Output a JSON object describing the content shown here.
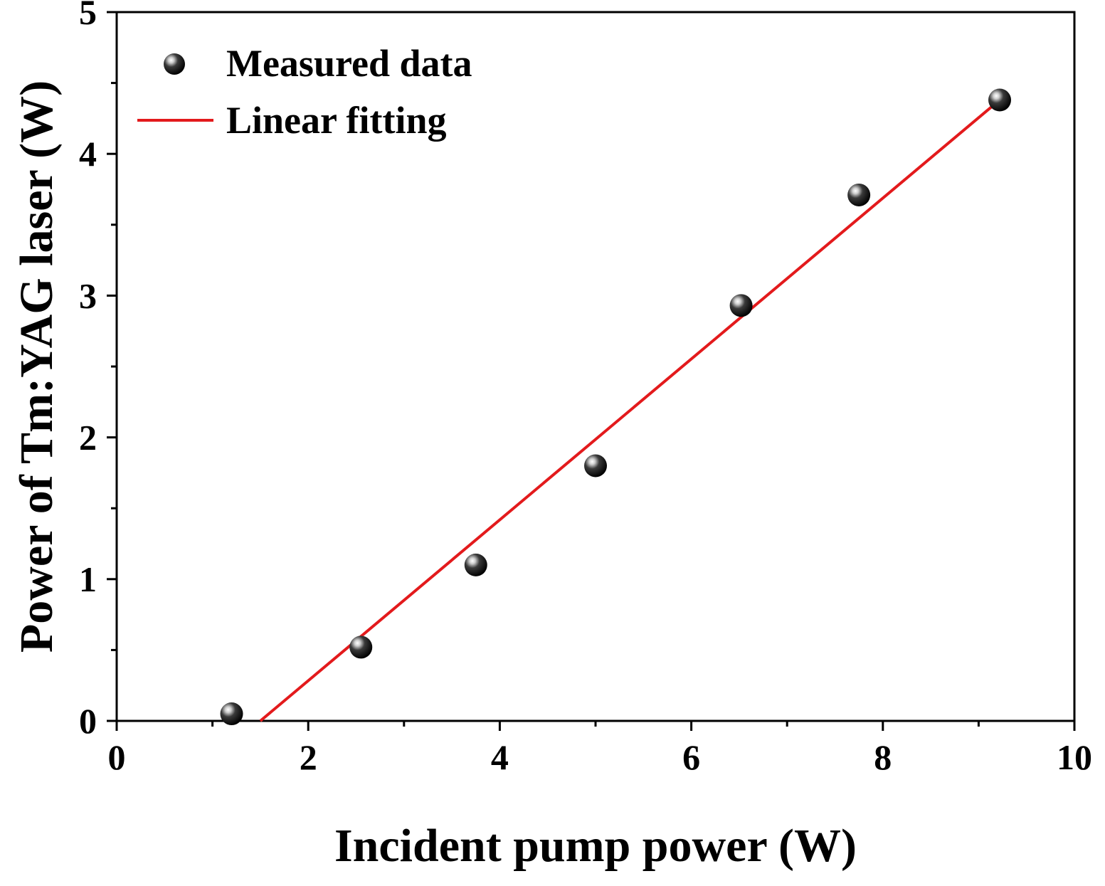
{
  "chart_data": {
    "type": "scatter",
    "title": "",
    "xlabel": "Incident pump power (W)",
    "ylabel": "Power of Tm:YAG laser (W)",
    "xlim": [
      0,
      10
    ],
    "ylim": [
      0,
      5
    ],
    "x_ticks": [
      0,
      2,
      4,
      6,
      8,
      10
    ],
    "x_tick_labels": [
      "0",
      "2",
      "4",
      "6",
      "8",
      "10"
    ],
    "x_minor_ticks": [
      1,
      3,
      5,
      7,
      9
    ],
    "y_ticks": [
      0,
      1,
      2,
      3,
      4,
      5
    ],
    "y_tick_labels": [
      "0",
      "1",
      "2",
      "3",
      "4",
      "5"
    ],
    "y_minor_ticks": [
      0.5,
      1.5,
      2.5,
      3.5,
      4.5
    ],
    "grid": false,
    "legend_position": "top-left",
    "series": [
      {
        "name": "Measured data",
        "kind": "scatter",
        "marker": "sphere",
        "color": "#111111",
        "points": [
          {
            "x": 1.2,
            "y": 0.05
          },
          {
            "x": 2.55,
            "y": 0.52
          },
          {
            "x": 3.75,
            "y": 1.1
          },
          {
            "x": 5.0,
            "y": 1.8
          },
          {
            "x": 6.52,
            "y": 2.93
          },
          {
            "x": 7.75,
            "y": 3.71
          },
          {
            "x": 9.22,
            "y": 4.38
          }
        ]
      },
      {
        "name": "Linear fitting",
        "kind": "line",
        "color": "#e31a1c",
        "points": [
          {
            "x": 1.5,
            "y": 0.0
          },
          {
            "x": 9.22,
            "y": 4.38
          }
        ]
      }
    ]
  },
  "legend": {
    "items": [
      {
        "label": "Measured data",
        "icon": "sphere-marker-icon"
      },
      {
        "label": "Linear fitting",
        "icon": "red-line-icon"
      }
    ]
  },
  "colors": {
    "axis": "#000000",
    "fit_line": "#e31a1c",
    "marker": "#111111",
    "background": "#ffffff"
  }
}
